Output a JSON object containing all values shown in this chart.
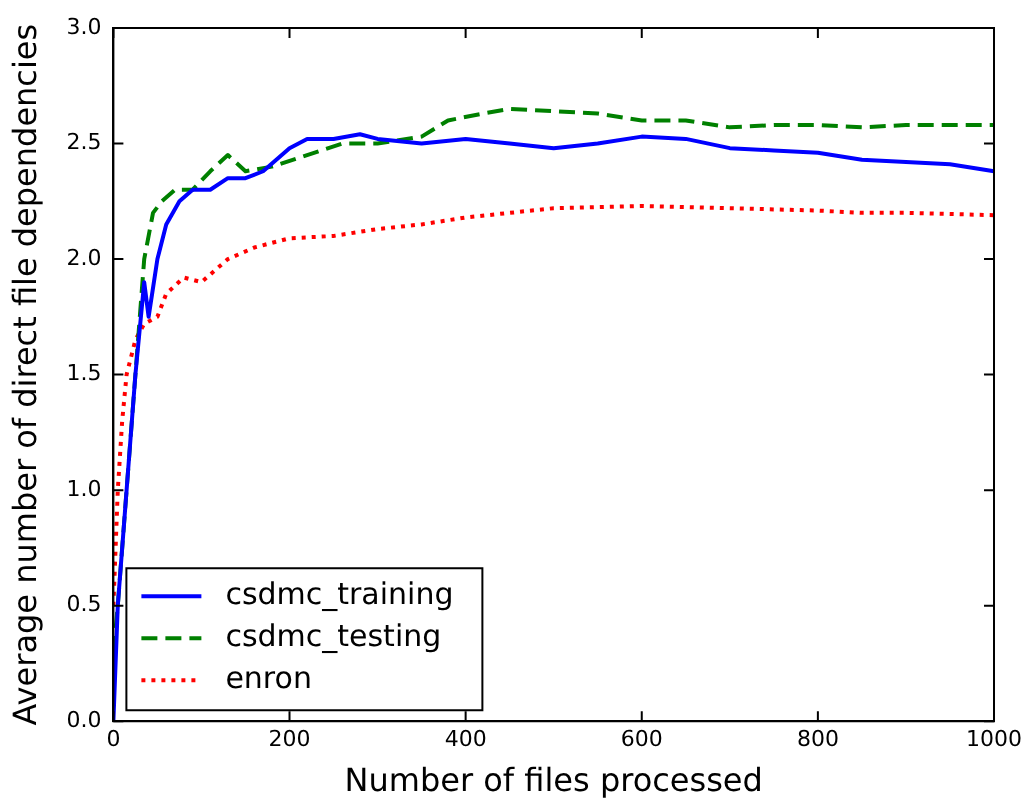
{
  "chart_data": {
    "type": "line",
    "xlabel": "Number of files processed",
    "ylabel": "Average number of direct file dependencies",
    "xlim": [
      0,
      1000
    ],
    "xticks": [
      0,
      200,
      400,
      600,
      800,
      1000
    ],
    "ylim": [
      0,
      3.0
    ],
    "yticks": [
      {
        "value": 0,
        "label": "0.0"
      },
      {
        "value": 0.5,
        "label": "0.5"
      },
      {
        "value": 1,
        "label": "1.0"
      },
      {
        "value": 1.5,
        "label": "1.5"
      },
      {
        "value": 2,
        "label": "2.0"
      },
      {
        "value": 2.5,
        "label": "2.5"
      },
      {
        "value": 3,
        "label": "3.0"
      }
    ],
    "grid": false,
    "legend": "bottom left",
    "marker": "none",
    "series": [
      {
        "name": "csdmc_training",
        "color": "#0000ff",
        "line_style": "solid",
        "x": [
          0,
          5,
          15,
          25,
          35,
          40,
          50,
          60,
          75,
          90,
          110,
          130,
          150,
          170,
          200,
          220,
          250,
          280,
          300,
          350,
          400,
          450,
          500,
          550,
          600,
          650,
          700,
          750,
          800,
          850,
          900,
          950,
          1000
        ],
        "values": [
          0,
          0.5,
          1.0,
          1.5,
          1.9,
          1.75,
          2.0,
          2.15,
          2.25,
          2.3,
          2.3,
          2.35,
          2.35,
          2.38,
          2.48,
          2.52,
          2.52,
          2.54,
          2.52,
          2.5,
          2.52,
          2.5,
          2.48,
          2.5,
          2.53,
          2.52,
          2.48,
          2.47,
          2.46,
          2.43,
          2.42,
          2.41,
          2.38
        ]
      },
      {
        "name": "csdmc_testing",
        "color": "#008000",
        "line_style": "dashed",
        "x": [
          0,
          5,
          15,
          25,
          35,
          45,
          55,
          70,
          90,
          110,
          130,
          150,
          180,
          220,
          260,
          300,
          350,
          380,
          420,
          450,
          500,
          550,
          600,
          650,
          700,
          750,
          800,
          850,
          900,
          950,
          1000
        ],
        "values": [
          0.3,
          0.5,
          1.0,
          1.5,
          2.0,
          2.2,
          2.25,
          2.3,
          2.3,
          2.38,
          2.45,
          2.38,
          2.4,
          2.45,
          2.5,
          2.5,
          2.53,
          2.6,
          2.63,
          2.65,
          2.64,
          2.63,
          2.6,
          2.6,
          2.57,
          2.58,
          2.58,
          2.57,
          2.58,
          2.58,
          2.58
        ]
      },
      {
        "name": "enron",
        "color": "#ff0000",
        "line_style": "dotted",
        "x": [
          0,
          5,
          10,
          15,
          25,
          35,
          50,
          60,
          80,
          100,
          130,
          160,
          200,
          250,
          300,
          350,
          400,
          450,
          500,
          600,
          700,
          800,
          850,
          900,
          1000
        ],
        "values": [
          0.5,
          1.0,
          1.3,
          1.5,
          1.65,
          1.72,
          1.75,
          1.85,
          1.92,
          1.9,
          2.0,
          2.05,
          2.09,
          2.1,
          2.13,
          2.15,
          2.18,
          2.2,
          2.22,
          2.23,
          2.22,
          2.21,
          2.2,
          2.2,
          2.19
        ]
      }
    ]
  }
}
